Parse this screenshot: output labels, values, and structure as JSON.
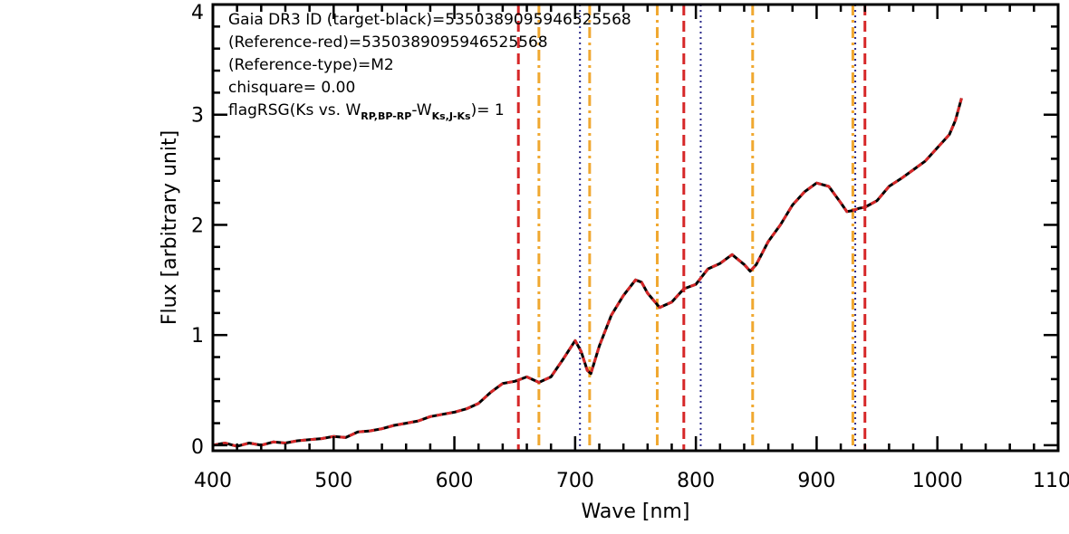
{
  "chart_data": {
    "type": "line",
    "xlabel": "Wave [nm]",
    "ylabel": "Flux [arbitrary unit]",
    "xlim": [
      400,
      1100
    ],
    "ylim": [
      -0.05,
      4
    ],
    "x_ticks": [
      400,
      500,
      600,
      700,
      800,
      900,
      1000,
      1100
    ],
    "x_tick_labels": [
      "400",
      "500",
      "600",
      "700",
      "800",
      "900",
      "1000",
      "1100"
    ],
    "y_ticks": [
      0,
      1,
      2,
      3,
      4
    ],
    "y_tick_labels": [
      "0",
      "1",
      "2",
      "3",
      "4"
    ],
    "grid": false,
    "annotations": {
      "line1": "Gaia DR3 ID (target-black)=5350389095946525568",
      "line2": "(Reference-red)=5350389095946525568",
      "line3": "(Reference-type)=M2",
      "line4": "chisquare= 0.00",
      "line5_pre": "flagRSG(Ks vs. W",
      "line5_sub1": "RP,BP-RP",
      "line5_mid": "-W",
      "line5_sub2": "Ks,J-Ks",
      "line5_post": ")= 1"
    },
    "series": [
      {
        "color": "#000000",
        "style": "solid",
        "x": [
          400,
          410,
          420,
          430,
          440,
          450,
          460,
          470,
          480,
          490,
          500,
          510,
          520,
          530,
          540,
          550,
          560,
          570,
          580,
          590,
          600,
          610,
          620,
          630,
          640,
          650,
          655,
          660,
          670,
          680,
          690,
          700,
          705,
          710,
          713,
          720,
          730,
          740,
          750,
          755,
          760,
          770,
          780,
          790,
          800,
          810,
          820,
          830,
          840,
          845,
          850,
          860,
          870,
          880,
          890,
          900,
          910,
          920,
          925,
          930,
          935,
          940,
          950,
          960,
          970,
          980,
          990,
          1000,
          1010,
          1015,
          1020
        ],
        "y": [
          0.0,
          0.02,
          -0.01,
          0.02,
          0.0,
          0.03,
          0.02,
          0.04,
          0.05,
          0.06,
          0.08,
          0.07,
          0.12,
          0.13,
          0.15,
          0.18,
          0.2,
          0.22,
          0.26,
          0.28,
          0.3,
          0.33,
          0.38,
          0.48,
          0.56,
          0.58,
          0.6,
          0.62,
          0.57,
          0.62,
          0.78,
          0.95,
          0.85,
          0.68,
          0.65,
          0.9,
          1.18,
          1.36,
          1.5,
          1.48,
          1.38,
          1.25,
          1.3,
          1.42,
          1.46,
          1.6,
          1.65,
          1.73,
          1.64,
          1.58,
          1.64,
          1.85,
          2.0,
          2.18,
          2.3,
          2.38,
          2.35,
          2.2,
          2.12,
          2.13,
          2.15,
          2.16,
          2.22,
          2.35,
          2.42,
          2.5,
          2.58,
          2.7,
          2.82,
          2.95,
          3.15
        ]
      },
      {
        "color": "#d62728",
        "style": "dashed",
        "x": [
          400,
          410,
          420,
          430,
          440,
          450,
          460,
          470,
          480,
          490,
          500,
          510,
          520,
          530,
          540,
          550,
          560,
          570,
          580,
          590,
          600,
          610,
          620,
          630,
          640,
          650,
          655,
          660,
          670,
          680,
          690,
          700,
          705,
          710,
          713,
          720,
          730,
          740,
          750,
          755,
          760,
          770,
          780,
          790,
          800,
          810,
          820,
          830,
          840,
          845,
          850,
          860,
          870,
          880,
          890,
          900,
          910,
          920,
          925,
          930,
          935,
          940,
          950,
          960,
          970,
          980,
          990,
          1000,
          1010,
          1015,
          1020
        ],
        "y": [
          0.0,
          0.02,
          -0.01,
          0.02,
          0.0,
          0.03,
          0.02,
          0.04,
          0.05,
          0.06,
          0.08,
          0.07,
          0.12,
          0.13,
          0.15,
          0.18,
          0.2,
          0.22,
          0.26,
          0.28,
          0.3,
          0.33,
          0.38,
          0.48,
          0.56,
          0.58,
          0.6,
          0.62,
          0.57,
          0.62,
          0.78,
          0.95,
          0.85,
          0.68,
          0.65,
          0.9,
          1.18,
          1.36,
          1.5,
          1.48,
          1.38,
          1.25,
          1.3,
          1.42,
          1.46,
          1.6,
          1.65,
          1.73,
          1.64,
          1.58,
          1.64,
          1.85,
          2.0,
          2.18,
          2.3,
          2.38,
          2.35,
          2.2,
          2.12,
          2.13,
          2.15,
          2.16,
          2.22,
          2.35,
          2.42,
          2.5,
          2.58,
          2.7,
          2.82,
          2.95,
          3.15
        ]
      }
    ],
    "vlines": [
      {
        "x": 653,
        "color": "#d62728",
        "style": "dashed"
      },
      {
        "x": 790,
        "color": "#d62728",
        "style": "dashed"
      },
      {
        "x": 940,
        "color": "#d62728",
        "style": "dashed"
      },
      {
        "x": 670,
        "color": "#f0a830",
        "style": "dashdot"
      },
      {
        "x": 712,
        "color": "#f0a830",
        "style": "dashdot"
      },
      {
        "x": 768,
        "color": "#f0a830",
        "style": "dashdot"
      },
      {
        "x": 847,
        "color": "#f0a830",
        "style": "dashdot"
      },
      {
        "x": 930,
        "color": "#f0a830",
        "style": "dashdot"
      },
      {
        "x": 704,
        "color": "#2a2a8a",
        "style": "dotted"
      },
      {
        "x": 804,
        "color": "#2a2a8a",
        "style": "dotted"
      },
      {
        "x": 932,
        "color": "#2a2a8a",
        "style": "dotted"
      }
    ]
  }
}
